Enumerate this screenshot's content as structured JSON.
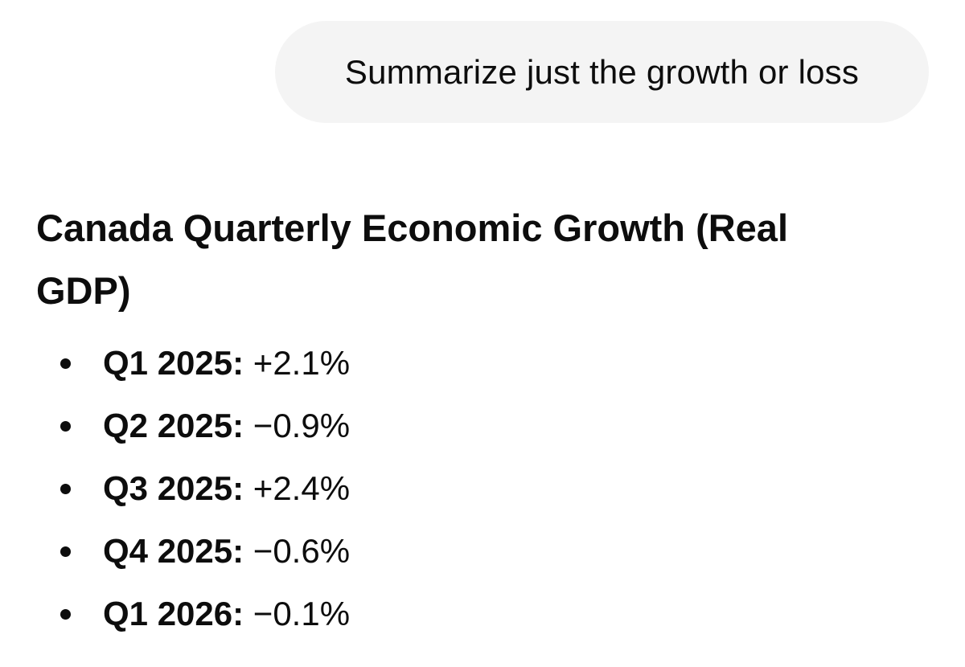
{
  "user_message": {
    "text": "Summarize just the growth or loss"
  },
  "assistant": {
    "heading": "Canada Quarterly Economic Growth (Real GDP)",
    "items": [
      {
        "quarter": "Q1 2025:",
        "value": " +2.1%"
      },
      {
        "quarter": "Q2 2025:",
        "value": " −0.9%"
      },
      {
        "quarter": "Q3 2025:",
        "value": " +2.4%"
      },
      {
        "quarter": "Q4 2025:",
        "value": " −0.6%"
      },
      {
        "quarter": "Q1 2026:",
        "value": " −0.1%"
      }
    ]
  },
  "colors": {
    "bubble_background": "#f4f4f4",
    "text": "#0d0d0d",
    "page_background": "#ffffff"
  }
}
